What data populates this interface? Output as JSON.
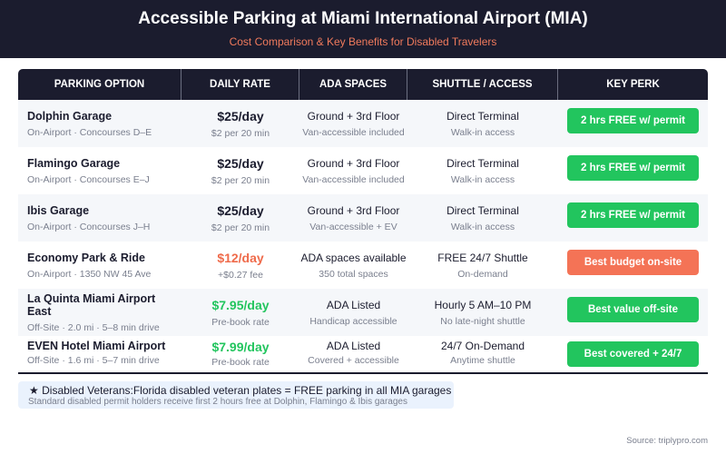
{
  "header": {
    "title": "Accessible Parking at Miami International Airport (MIA)",
    "subtitle": "Cost Comparison & Key Benefits for Disabled Travelers"
  },
  "table": {
    "columns": [
      "PARKING OPTION",
      "DAILY RATE",
      "ADA SPACES",
      "SHUTTLE / ACCESS",
      "KEY PERK"
    ],
    "rows": [
      {
        "name": "Dolphin Garage",
        "location": "On-Airport · Concourses D–E",
        "rate": "$25/day",
        "rate_note": "$2 per 20 min",
        "rate_color": "#1b1c2e",
        "ada": "Ground + 3rd Floor",
        "ada_note": "Van-accessible included",
        "shuttle": "Direct Terminal",
        "shuttle_note": "Walk-in access",
        "perk": "2 hrs FREE w/ permit",
        "perk_color": "#22c55e"
      },
      {
        "name": "Flamingo Garage",
        "location": "On-Airport · Concourses E–J",
        "rate": "$25/day",
        "rate_note": "$2 per 20 min",
        "rate_color": "#1b1c2e",
        "ada": "Ground + 3rd Floor",
        "ada_note": "Van-accessible included",
        "shuttle": "Direct Terminal",
        "shuttle_note": "Walk-in access",
        "perk": "2 hrs FREE w/ permit",
        "perk_color": "#22c55e"
      },
      {
        "name": "Ibis Garage",
        "location": "On-Airport · Concourses J–H",
        "rate": "$25/day",
        "rate_note": "$2 per 20 min",
        "rate_color": "#1b1c2e",
        "ada": "Ground + 3rd Floor",
        "ada_note": "Van-accessible + EV",
        "shuttle": "Direct Terminal",
        "shuttle_note": "Walk-in access",
        "perk": "2 hrs FREE w/ permit",
        "perk_color": "#22c55e"
      },
      {
        "name": "Economy Park & Ride",
        "location": "On-Airport · 1350 NW 45 Ave",
        "rate": "$12/day",
        "rate_note": "+$0.27 fee",
        "rate_color": "#ef6a4a",
        "ada": "ADA spaces available",
        "ada_note": "350 total spaces",
        "shuttle": "FREE 24/7 Shuttle",
        "shuttle_note": "On-demand",
        "perk": "Best budget on-site",
        "perk_color": "#f47356"
      },
      {
        "name": "La Quinta Miami Airport East",
        "location": "Off-Site · 2.0 mi · 5–8 min drive",
        "rate": "$7.95/day",
        "rate_note": "Pre-book rate",
        "rate_color": "#22c55e",
        "ada": "ADA Listed",
        "ada_note": "Handicap accessible",
        "shuttle": "Hourly 5 AM–10 PM",
        "shuttle_note": "No late-night shuttle",
        "perk": "Best value off-site",
        "perk_color": "#22c55e"
      },
      {
        "name": "EVEN Hotel Miami Airport",
        "location": "Off-Site · 1.6 mi · 5–7 min drive",
        "rate": "$7.99/day",
        "rate_note": "Pre-book rate",
        "rate_color": "#22c55e",
        "ada": "ADA Listed",
        "ada_note": "Covered + accessible",
        "shuttle": "24/7 On-Demand",
        "shuttle_note": "Anytime shuttle",
        "perk": "Best covered + 24/7",
        "perk_color": "#22c55e"
      }
    ]
  },
  "note": {
    "icon": "star-icon",
    "icon_glyph": "★",
    "main": "Disabled Veterans:Florida disabled veteran plates = FREE parking in all MIA garages",
    "sub": "Standard disabled permit holders receive first 2 hours free at Dolphin, Flamingo & Ibis garages"
  },
  "source": "Source: triplypro.com",
  "colors": {
    "dark": "#1b1c2e",
    "accent_orange": "#f47356",
    "accent_green": "#22c55e",
    "muted": "#7a7f8e",
    "note_bg": "#eaf2fd"
  }
}
